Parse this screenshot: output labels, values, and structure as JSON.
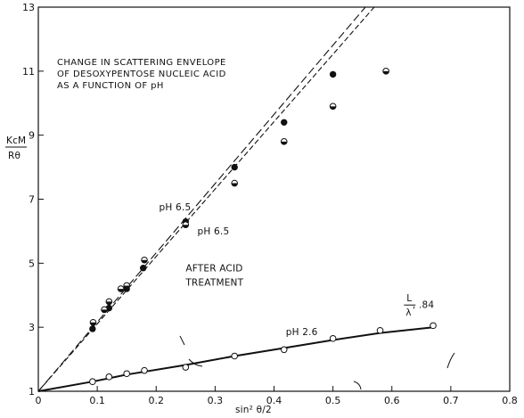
{
  "chart_data": {
    "type": "scatter",
    "title_lines": [
      "CHANGE IN SCATTERING ENVELOPE",
      "OF DESOXYPENTOSE NUCLEIC ACID",
      "AS A FUNCTION OF pH"
    ],
    "ylabel_top": "KcM",
    "ylabel_bottom": "Rθ",
    "xlabel": "sin² θ/2",
    "xlim": [
      0,
      0.8
    ],
    "ylim": [
      1,
      13
    ],
    "xticks": [
      0,
      0.1,
      0.2,
      0.3,
      0.4,
      0.5,
      0.6,
      0.7,
      0.8
    ],
    "xtick_labels": [
      "0",
      "0.1",
      "0.2",
      "0.3",
      "0.4",
      "0.5",
      "0.6",
      "0.7",
      "0.8"
    ],
    "yticks": [
      1,
      3,
      5,
      7,
      9,
      11,
      13
    ],
    "ytick_labels": [
      "1",
      "3",
      "5",
      "7",
      "9",
      "11",
      "13"
    ],
    "grid": false,
    "series": [
      {
        "name": "pH 6.5",
        "marker": "filled-circle",
        "x": [
          0.092,
          0.12,
          0.15,
          0.178,
          0.25,
          0.333,
          0.417,
          0.5
        ],
        "y": [
          2.95,
          3.6,
          4.2,
          4.85,
          6.3,
          8.0,
          9.4,
          10.9
        ]
      },
      {
        "name": "pH 6.5 AFTER ACID TREATMENT",
        "marker": "half-filled-circle",
        "x": [
          0.093,
          0.112,
          0.12,
          0.14,
          0.15,
          0.18,
          0.25,
          0.333,
          0.417,
          0.5,
          0.59
        ],
        "y": [
          3.15,
          3.55,
          3.8,
          4.2,
          4.3,
          5.1,
          6.2,
          7.5,
          8.8,
          9.9,
          11.0
        ]
      },
      {
        "name": "pH 2.6",
        "marker": "open-circle",
        "x": [
          0.092,
          0.12,
          0.15,
          0.18,
          0.25,
          0.333,
          0.417,
          0.5,
          0.58,
          0.67
        ],
        "y": [
          1.3,
          1.45,
          1.55,
          1.65,
          1.75,
          2.1,
          2.3,
          2.65,
          2.9,
          3.05
        ]
      }
    ],
    "lines": [
      {
        "style": "dashed",
        "x": [
          0,
          0.555
        ],
        "y": [
          1,
          13
        ]
      },
      {
        "style": "dashed",
        "x": [
          0,
          0.57
        ],
        "y": [
          1,
          13
        ]
      },
      {
        "style": "solid",
        "x": [
          0,
          0.092,
          0.15,
          0.25,
          0.333,
          0.417,
          0.5,
          0.58,
          0.67
        ],
        "y": [
          1,
          1.3,
          1.52,
          1.82,
          2.1,
          2.35,
          2.6,
          2.82,
          3.0
        ]
      }
    ],
    "annotations": [
      {
        "text": "pH 6.5",
        "x": 0.205,
        "y": 6.65
      },
      {
        "text": "pH 6.5",
        "x": 0.27,
        "y": 5.9
      },
      {
        "text": "AFTER ACID",
        "x": 0.25,
        "y": 4.75
      },
      {
        "text": "TREATMENT",
        "x": 0.25,
        "y": 4.3
      },
      {
        "text": "pH 2.6",
        "x": 0.42,
        "y": 2.75
      },
      {
        "text": ", .84",
        "x": 0.635,
        "y": 3.6
      }
    ],
    "ratio_label": {
      "numerator": "L",
      "denominator": "λ"
    }
  }
}
